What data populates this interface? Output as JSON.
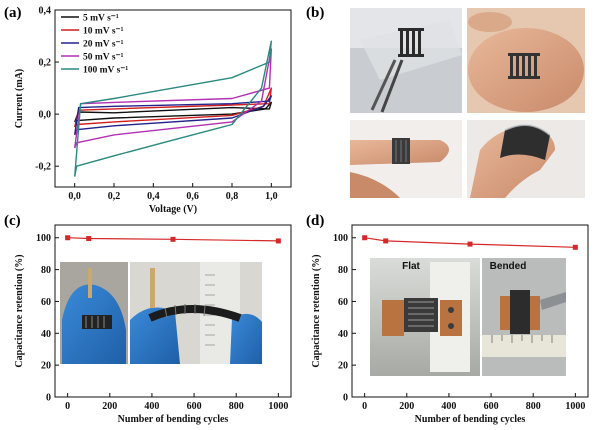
{
  "panels": {
    "a": {
      "label": "(a)"
    },
    "b": {
      "label": "(b)"
    },
    "c": {
      "label": "(c)"
    },
    "d": {
      "label": "(d)"
    }
  },
  "photos": {
    "d_flat_label": "Flat",
    "d_bended_label": "Bended"
  },
  "colors": {
    "cv_5": "#111111",
    "cv_10": "#d11f1f",
    "cv_20": "#23238c",
    "cv_50": "#b32fb3",
    "cv_100": "#2a8a80",
    "retention": "#d62828"
  },
  "chart_data": [
    {
      "panel": "a",
      "type": "line",
      "xlabel": "Voltage (V)",
      "ylabel": "Current (mA)",
      "xlim": [
        -0.1,
        1.1
      ],
      "ylim": [
        -0.28,
        0.4
      ],
      "xticks": [
        "0,0",
        "0,2",
        "0,4",
        "0,6",
        "0,8",
        "1,0"
      ],
      "yticks": [
        "-0,2",
        "0,0",
        "0,2",
        "0,4"
      ],
      "legend_position": "top-left",
      "series": [
        {
          "name": "5 mV s⁻¹",
          "color_key": "cv_5",
          "x": [
            0,
            0.01,
            0.2,
            0.8,
            0.97,
            1.0,
            0.99,
            0.8,
            0.2,
            0.02,
            0
          ],
          "y": [
            -0.03,
            -0.025,
            -0.015,
            0.0,
            0.02,
            0.045,
            0.02,
            0.025,
            0.005,
            0.008,
            -0.03
          ]
        },
        {
          "name": "10 mV s⁻¹",
          "color_key": "cv_10",
          "x": [
            0,
            0.01,
            0.2,
            0.8,
            0.96,
            1.0,
            0.99,
            0.8,
            0.2,
            0.02,
            0
          ],
          "y": [
            -0.05,
            -0.04,
            -0.03,
            -0.005,
            0.03,
            0.1,
            0.04,
            0.035,
            0.02,
            0.015,
            -0.05
          ]
        },
        {
          "name": "20 mV s⁻¹",
          "color_key": "cv_20",
          "x": [
            0,
            0.01,
            0.2,
            0.8,
            0.96,
            1.0,
            0.99,
            0.8,
            0.2,
            0.02,
            0
          ],
          "y": [
            -0.08,
            -0.06,
            -0.045,
            -0.015,
            0.03,
            0.07,
            0.05,
            0.04,
            0.03,
            0.025,
            -0.08
          ]
        },
        {
          "name": "50 mV s⁻¹",
          "color_key": "cv_50",
          "x": [
            0,
            0.01,
            0.2,
            0.8,
            0.95,
            1.0,
            0.99,
            0.8,
            0.2,
            0.03,
            0
          ],
          "y": [
            -0.13,
            -0.11,
            -0.08,
            -0.03,
            0.05,
            0.25,
            0.1,
            0.06,
            0.045,
            0.04,
            -0.13
          ]
        },
        {
          "name": "100 mV s⁻¹",
          "color_key": "cv_100",
          "x": [
            0,
            0.01,
            0.2,
            0.5,
            0.8,
            0.95,
            1.0,
            0.99,
            0.8,
            0.5,
            0.2,
            0.03,
            0
          ],
          "y": [
            -0.24,
            -0.2,
            -0.16,
            -0.1,
            -0.04,
            0.1,
            0.28,
            0.2,
            0.14,
            0.1,
            0.06,
            0.04,
            -0.24
          ]
        }
      ]
    },
    {
      "panel": "c",
      "type": "line",
      "xlabel": "Number of bending cycles",
      "ylabel": "Capacitance retention (%)",
      "xlim": [
        -60,
        1060
      ],
      "ylim": [
        0,
        108
      ],
      "xticks": [
        "0",
        "200",
        "400",
        "600",
        "800",
        "1000"
      ],
      "yticks": [
        "0",
        "20",
        "40",
        "60",
        "80",
        "100"
      ],
      "series": [
        {
          "color_key": "retention",
          "x": [
            0,
            100,
            500,
            1000
          ],
          "y": [
            100,
            99.5,
            99,
            98
          ]
        }
      ]
    },
    {
      "panel": "d",
      "type": "line",
      "xlabel": "Number of bending cycles",
      "ylabel": "Capacitance retention (%)",
      "xlim": [
        -60,
        1060
      ],
      "ylim": [
        0,
        108
      ],
      "xticks": [
        "0",
        "200",
        "400",
        "600",
        "800",
        "1000"
      ],
      "yticks": [
        "0",
        "20",
        "40",
        "60",
        "80",
        "100"
      ],
      "series": [
        {
          "color_key": "retention",
          "x": [
            0,
            100,
            500,
            1000
          ],
          "y": [
            100,
            98,
            96,
            94
          ]
        }
      ]
    }
  ]
}
